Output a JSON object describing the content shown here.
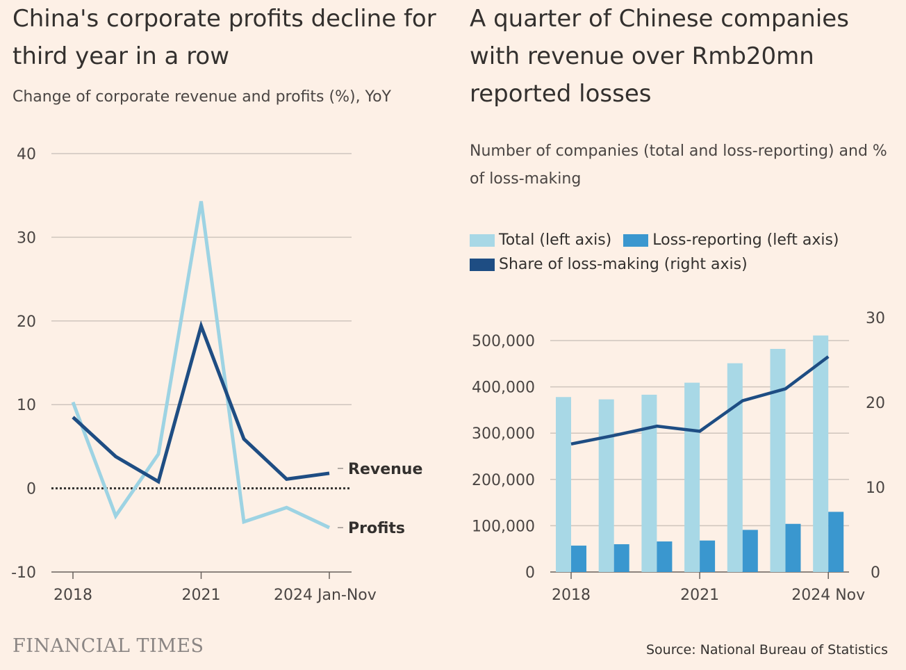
{
  "left": {
    "title": "China's corporate profits decline for third year in a row",
    "subtitle": "Change of corporate revenue and profits (%), YoY"
  },
  "right": {
    "title": "A quarter of Chinese companies with revenue over Rmb20mn reported losses",
    "subtitle": "Number of companies (total and loss-reporting) and % of loss-making",
    "legend": [
      {
        "label": "Total (left axis)",
        "color": "#a8d8e6"
      },
      {
        "label": "Loss-reporting (left axis)",
        "color": "#3a97cf"
      },
      {
        "label": "Share of loss-making (right axis)",
        "color": "#1e4d83"
      }
    ]
  },
  "footer": {
    "logo": "FINANCIAL TIMES",
    "source": "Source: National Bureau of Statistics"
  },
  "chart_data": [
    {
      "type": "line",
      "title": "China's corporate profits decline for third year in a row",
      "subtitle": "Change of corporate revenue and profits (%), YoY",
      "x": [
        2018,
        2019,
        2020,
        2021,
        2022,
        2023,
        2024
      ],
      "xticks": [
        {
          "value": 2018,
          "label": "2018"
        },
        {
          "value": 2021,
          "label": "2021"
        },
        {
          "value": 2024,
          "label": "2024 Jan-Nov"
        }
      ],
      "ylim": [
        -10,
        40
      ],
      "yticks": [
        {
          "value": 40,
          "label": "40"
        },
        {
          "value": 30,
          "label": "30"
        },
        {
          "value": 20,
          "label": "20"
        },
        {
          "value": 10,
          "label": "10"
        },
        {
          "value": 0,
          "label": "0"
        },
        {
          "value": -10,
          "label": "-10"
        }
      ],
      "grid": true,
      "zero_line": "dotted",
      "series": [
        {
          "name": "Revenue",
          "color": "#1e4d83",
          "values": [
            8.5,
            3.8,
            0.8,
            19.4,
            5.9,
            1.1,
            1.8
          ]
        },
        {
          "name": "Profits",
          "color": "#9dd3e3",
          "values": [
            10.3,
            -3.3,
            4.1,
            34.3,
            -4.0,
            -2.3,
            -4.7
          ]
        }
      ]
    },
    {
      "type": "bar",
      "title": "A quarter of Chinese companies with revenue over Rmb20mn reported losses",
      "subtitle": "Number of companies (total and loss-reporting) and % of loss-making",
      "categories": [
        2018,
        2019,
        2020,
        2021,
        2022,
        2023,
        2024
      ],
      "xticks": [
        {
          "value": 2018,
          "label": "2018"
        },
        {
          "value": 2021,
          "label": "2021"
        },
        {
          "value": 2024,
          "label": "2024 Nov"
        }
      ],
      "ylim": [
        0,
        500000
      ],
      "yticks": [
        {
          "value": 500000,
          "label": "500,000"
        },
        {
          "value": 400000,
          "label": "400,000"
        },
        {
          "value": 300000,
          "label": "300,000"
        },
        {
          "value": 200000,
          "label": "200,000"
        },
        {
          "value": 100000,
          "label": "100,000"
        },
        {
          "value": 0,
          "label": "0"
        }
      ],
      "y2lim": [
        0,
        30
      ],
      "y2ticks": [
        {
          "value": 30,
          "label": "30"
        },
        {
          "value": 20,
          "label": "20"
        },
        {
          "value": 10,
          "label": "10"
        },
        {
          "value": 0,
          "label": "0"
        }
      ],
      "grid": true,
      "legend_position": "top",
      "series": [
        {
          "name": "Total (left axis)",
          "kind": "bar",
          "axis": "left",
          "color": "#a8d8e6",
          "values": [
            378000,
            373000,
            383000,
            409000,
            451000,
            482000,
            511000
          ]
        },
        {
          "name": "Loss-reporting (left axis)",
          "kind": "bar",
          "axis": "left",
          "color": "#3a97cf",
          "values": [
            57000,
            60000,
            66000,
            68000,
            91000,
            104000,
            130000
          ]
        },
        {
          "name": "Share of loss-making (right axis)",
          "kind": "line",
          "axis": "right",
          "color": "#1e4d83",
          "values": [
            15.1,
            16.1,
            17.2,
            16.6,
            20.2,
            21.6,
            25.4
          ]
        }
      ]
    }
  ]
}
